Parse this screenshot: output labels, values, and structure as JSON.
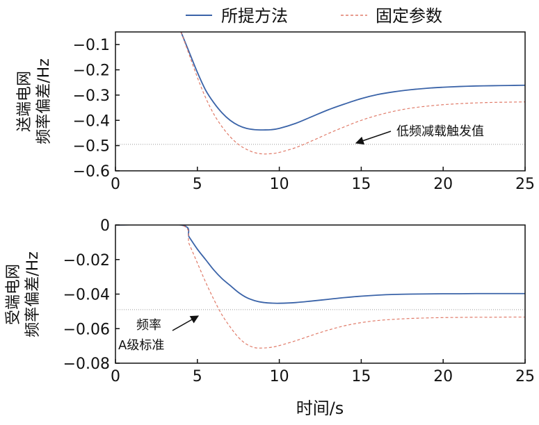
{
  "legend": [
    {
      "name": "所提方法",
      "color": "#3a63a8",
      "style": "solid"
    },
    {
      "name": "固定参数",
      "color": "#e07a68",
      "style": "dashed"
    }
  ],
  "xlabel": "时间/s",
  "chart_data": [
    {
      "type": "line",
      "ylabel": [
        "送端电网",
        "频率偏差/Hz"
      ],
      "xlim": [
        0,
        25
      ],
      "ylim": [
        -0.6,
        -0.05
      ],
      "xticks": [
        0,
        5,
        10,
        15,
        20,
        25
      ],
      "xtick_labels": [
        "0",
        "5",
        "10",
        "15",
        "20",
        "25"
      ],
      "yticks": [
        -0.6,
        -0.5,
        -0.4,
        -0.3,
        -0.2,
        -0.1
      ],
      "ytick_labels": [
        "−0.6",
        "−0.5",
        "−0.4",
        "−0.3",
        "−0.2",
        "−0.1"
      ],
      "threshold": -0.495,
      "annotation": [
        "低频减载触发值"
      ],
      "series": [
        {
          "name": "所提方法",
          "color": "#3a63a8",
          "dashed": false,
          "points": [
            [
              4.0,
              -0.05
            ],
            [
              4.5,
              -0.13
            ],
            [
              5,
              -0.21
            ],
            [
              5.5,
              -0.28
            ],
            [
              6,
              -0.33
            ],
            [
              6.5,
              -0.37
            ],
            [
              7,
              -0.4
            ],
            [
              7.5,
              -0.42
            ],
            [
              8,
              -0.432
            ],
            [
              8.5,
              -0.437
            ],
            [
              9,
              -0.438
            ],
            [
              9.5,
              -0.437
            ],
            [
              10,
              -0.432
            ],
            [
              11,
              -0.412
            ],
            [
              12,
              -0.385
            ],
            [
              13,
              -0.358
            ],
            [
              14,
              -0.335
            ],
            [
              15,
              -0.314
            ],
            [
              16,
              -0.298
            ],
            [
              17,
              -0.287
            ],
            [
              18,
              -0.279
            ],
            [
              19,
              -0.273
            ],
            [
              20,
              -0.269
            ],
            [
              21,
              -0.266
            ],
            [
              22,
              -0.264
            ],
            [
              23,
              -0.263
            ],
            [
              24,
              -0.262
            ],
            [
              25,
              -0.261
            ]
          ]
        },
        {
          "name": "固定参数",
          "color": "#e07a68",
          "dashed": true,
          "points": [
            [
              4.0,
              -0.05
            ],
            [
              4.5,
              -0.14
            ],
            [
              5,
              -0.23
            ],
            [
              5.5,
              -0.31
            ],
            [
              6,
              -0.375
            ],
            [
              6.5,
              -0.425
            ],
            [
              7,
              -0.465
            ],
            [
              7.5,
              -0.495
            ],
            [
              8,
              -0.515
            ],
            [
              8.5,
              -0.528
            ],
            [
              9,
              -0.533
            ],
            [
              9.5,
              -0.532
            ],
            [
              10,
              -0.527
            ],
            [
              11,
              -0.508
            ],
            [
              12,
              -0.481
            ],
            [
              13,
              -0.452
            ],
            [
              14,
              -0.425
            ],
            [
              15,
              -0.4
            ],
            [
              16,
              -0.38
            ],
            [
              17,
              -0.364
            ],
            [
              18,
              -0.352
            ],
            [
              19,
              -0.344
            ],
            [
              20,
              -0.338
            ],
            [
              21,
              -0.334
            ],
            [
              22,
              -0.331
            ],
            [
              23,
              -0.329
            ],
            [
              24,
              -0.328
            ],
            [
              25,
              -0.327
            ]
          ]
        }
      ]
    },
    {
      "type": "line",
      "ylabel": [
        "受端电网",
        "频率偏差/Hz"
      ],
      "xlim": [
        0,
        25
      ],
      "ylim": [
        -0.08,
        0
      ],
      "xticks": [
        0,
        5,
        10,
        15,
        20,
        25
      ],
      "xtick_labels": [
        "0",
        "5",
        "10",
        "15",
        "20",
        "25"
      ],
      "yticks": [
        -0.08,
        -0.06,
        -0.04,
        -0.02,
        0
      ],
      "ytick_labels": [
        "−0.08",
        "−0.06",
        "−0.04",
        "−0.02",
        "0"
      ],
      "threshold": -0.049,
      "annotation": [
        "频率",
        "A级标准"
      ],
      "series": [
        {
          "name": "所提方法",
          "color": "#3a63a8",
          "dashed": false,
          "points": [
            [
              0,
              0
            ],
            [
              4,
              0
            ],
            [
              4.5,
              -0.007
            ],
            [
              5,
              -0.014
            ],
            [
              5.5,
              -0.02
            ],
            [
              6,
              -0.026
            ],
            [
              6.5,
              -0.031
            ],
            [
              7,
              -0.035
            ],
            [
              7.5,
              -0.039
            ],
            [
              8,
              -0.042
            ],
            [
              8.5,
              -0.0438
            ],
            [
              9,
              -0.0448
            ],
            [
              9.5,
              -0.0452
            ],
            [
              10,
              -0.0453
            ],
            [
              11,
              -0.0449
            ],
            [
              12,
              -0.044
            ],
            [
              13,
              -0.043
            ],
            [
              14,
              -0.042
            ],
            [
              15,
              -0.0412
            ],
            [
              16,
              -0.0406
            ],
            [
              17,
              -0.0402
            ],
            [
              18,
              -0.04
            ],
            [
              19,
              -0.0399
            ],
            [
              20,
              -0.0398
            ],
            [
              21,
              -0.0398
            ],
            [
              22,
              -0.0397
            ],
            [
              23,
              -0.0397
            ],
            [
              24,
              -0.0397
            ],
            [
              25,
              -0.0397
            ]
          ]
        },
        {
          "name": "固定参数",
          "color": "#e07a68",
          "dashed": true,
          "points": [
            [
              0,
              0
            ],
            [
              4,
              0
            ],
            [
              4.5,
              -0.011
            ],
            [
              5,
              -0.022
            ],
            [
              5.5,
              -0.033
            ],
            [
              6,
              -0.043
            ],
            [
              6.5,
              -0.052
            ],
            [
              7,
              -0.059
            ],
            [
              7.5,
              -0.065
            ],
            [
              8,
              -0.069
            ],
            [
              8.5,
              -0.071
            ],
            [
              9,
              -0.0712
            ],
            [
              9.5,
              -0.0708
            ],
            [
              10,
              -0.0698
            ],
            [
              11,
              -0.067
            ],
            [
              12,
              -0.0638
            ],
            [
              13,
              -0.0608
            ],
            [
              14,
              -0.0583
            ],
            [
              15,
              -0.0565
            ],
            [
              16,
              -0.0553
            ],
            [
              17,
              -0.0546
            ],
            [
              18,
              -0.0541
            ],
            [
              19,
              -0.0538
            ],
            [
              20,
              -0.0536
            ],
            [
              21,
              -0.0535
            ],
            [
              22,
              -0.0534
            ],
            [
              23,
              -0.0534
            ],
            [
              24,
              -0.0533
            ],
            [
              25,
              -0.0533
            ]
          ]
        }
      ]
    }
  ]
}
